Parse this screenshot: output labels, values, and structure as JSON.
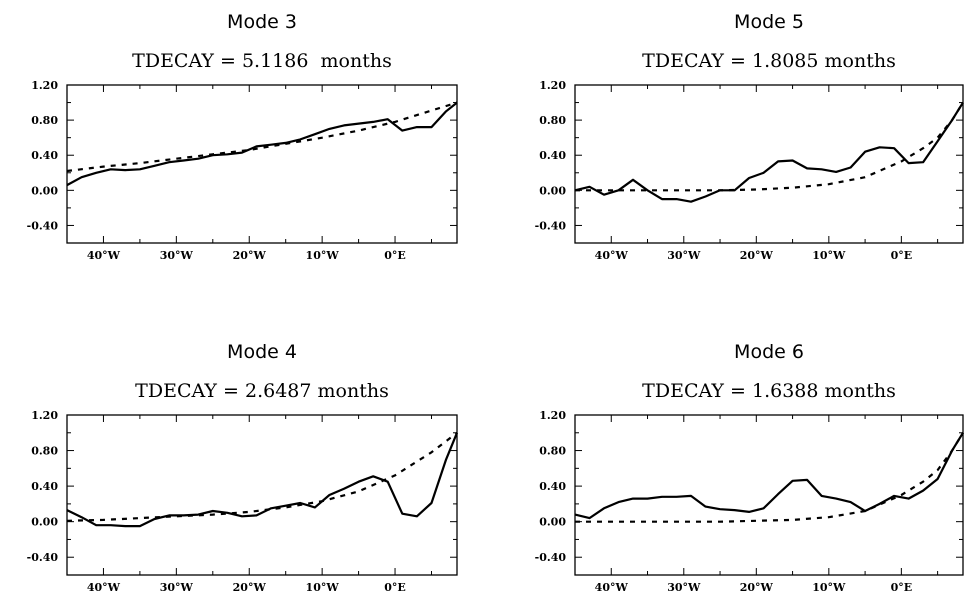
{
  "chart_data": [
    {
      "type": "line",
      "panel": "Mode 3",
      "title": "TDECAY = 5.1186  months",
      "xlim": [
        -45,
        8.5
      ],
      "ylim": [
        -0.6,
        1.2
      ],
      "yticks": [
        "1.20",
        "0.80",
        "0.40",
        "0.00",
        "-0.40"
      ],
      "xticks": [
        "40°W",
        "30°W",
        "20°W",
        "10°W",
        "0°E"
      ],
      "series": [
        {
          "style": "solid",
          "x": [
            -45,
            -43,
            -41,
            -39,
            -37,
            -35,
            -33,
            -31,
            -29,
            -27,
            -25,
            -23,
            -21,
            -19,
            -17,
            -15,
            -13,
            -11,
            -9,
            -7,
            -5,
            -3,
            -1,
            1,
            3,
            5,
            7,
            8.5
          ],
          "y": [
            0.06,
            0.15,
            0.2,
            0.24,
            0.23,
            0.24,
            0.28,
            0.32,
            0.34,
            0.36,
            0.4,
            0.41,
            0.43,
            0.5,
            0.52,
            0.54,
            0.58,
            0.64,
            0.7,
            0.74,
            0.76,
            0.78,
            0.81,
            0.68,
            0.72,
            0.72,
            0.9,
            1.0
          ]
        },
        {
          "style": "dashed",
          "x": [
            -45,
            -40,
            -35,
            -30,
            -25,
            -20,
            -15,
            -10,
            -5,
            0,
            5,
            8.5
          ],
          "y": [
            0.22,
            0.27,
            0.31,
            0.36,
            0.41,
            0.46,
            0.53,
            0.6,
            0.68,
            0.78,
            0.91,
            1.0
          ]
        }
      ]
    },
    {
      "type": "line",
      "panel": "Mode 5",
      "title": "TDECAY = 1.8085 months",
      "xlim": [
        -45,
        8.5
      ],
      "ylim": [
        -0.6,
        1.2
      ],
      "yticks": [
        "1.20",
        "0.80",
        "0.40",
        "0.00",
        "-0.40"
      ],
      "xticks": [
        "40°W",
        "30°W",
        "20°W",
        "10°W",
        "0°E"
      ],
      "series": [
        {
          "style": "solid",
          "x": [
            -45,
            -43,
            -41,
            -39,
            -37,
            -35,
            -33,
            -31,
            -29,
            -27,
            -25,
            -23,
            -21,
            -19,
            -17,
            -15,
            -13,
            -11,
            -9,
            -7,
            -5,
            -3,
            -1,
            1,
            3,
            5,
            7,
            8.5
          ],
          "y": [
            0.0,
            0.04,
            -0.05,
            0.0,
            0.12,
            0.0,
            -0.1,
            -0.1,
            -0.13,
            -0.07,
            0.0,
            0.0,
            0.14,
            0.2,
            0.33,
            0.34,
            0.25,
            0.24,
            0.21,
            0.26,
            0.44,
            0.49,
            0.48,
            0.31,
            0.32,
            0.56,
            0.8,
            1.0
          ]
        },
        {
          "style": "dashed",
          "x": [
            -45,
            -40,
            -35,
            -30,
            -25,
            -20,
            -15,
            -10,
            -5,
            0,
            3,
            5,
            7,
            8.5
          ],
          "y": [
            0.0,
            0.0,
            0.0,
            0.0,
            0.0,
            0.01,
            0.03,
            0.07,
            0.15,
            0.33,
            0.48,
            0.6,
            0.8,
            1.0
          ]
        }
      ]
    },
    {
      "type": "line",
      "panel": "Mode 4",
      "title": "TDECAY = 2.6487 months",
      "xlim": [
        -45,
        8.5
      ],
      "ylim": [
        -0.6,
        1.2
      ],
      "yticks": [
        "1.20",
        "0.80",
        "0.40",
        "0.00",
        "-0.40"
      ],
      "xticks": [
        "40°W",
        "30°W",
        "20°W",
        "10°W",
        "0°E"
      ],
      "series": [
        {
          "style": "solid",
          "x": [
            -45,
            -43,
            -41,
            -39,
            -37,
            -35,
            -33,
            -31,
            -29,
            -27,
            -25,
            -23,
            -21,
            -19,
            -17,
            -15,
            -13,
            -11,
            -9,
            -7,
            -5,
            -3,
            -1,
            1,
            3,
            5,
            7,
            8.5
          ],
          "y": [
            0.13,
            0.05,
            -0.04,
            -0.04,
            -0.05,
            -0.05,
            0.03,
            0.07,
            0.07,
            0.08,
            0.12,
            0.1,
            0.06,
            0.07,
            0.15,
            0.18,
            0.21,
            0.16,
            0.3,
            0.37,
            0.45,
            0.51,
            0.45,
            0.09,
            0.06,
            0.21,
            0.7,
            1.0
          ]
        },
        {
          "style": "dashed",
          "x": [
            -45,
            -40,
            -35,
            -30,
            -25,
            -20,
            -15,
            -10,
            -5,
            0,
            5,
            8.5
          ],
          "y": [
            0.01,
            0.02,
            0.04,
            0.06,
            0.08,
            0.11,
            0.16,
            0.23,
            0.34,
            0.52,
            0.78,
            1.0
          ]
        }
      ]
    },
    {
      "type": "line",
      "panel": "Mode 6",
      "title": "TDECAY = 1.6388 months",
      "xlim": [
        -45,
        8.5
      ],
      "ylim": [
        -0.6,
        1.2
      ],
      "yticks": [
        "1.20",
        "0.80",
        "0.40",
        "0.00",
        "-0.40"
      ],
      "xticks": [
        "40°W",
        "30°W",
        "20°W",
        "10°W",
        "0°E"
      ],
      "series": [
        {
          "style": "solid",
          "x": [
            -45,
            -43,
            -41,
            -39,
            -37,
            -35,
            -33,
            -31,
            -29,
            -27,
            -25,
            -23,
            -21,
            -19,
            -17,
            -15,
            -13,
            -11,
            -9,
            -7,
            -5,
            -3,
            -1,
            1,
            3,
            5,
            7,
            8.5
          ],
          "y": [
            0.08,
            0.04,
            0.15,
            0.22,
            0.26,
            0.26,
            0.28,
            0.28,
            0.29,
            0.17,
            0.14,
            0.13,
            0.11,
            0.15,
            0.31,
            0.46,
            0.47,
            0.29,
            0.26,
            0.22,
            0.12,
            0.2,
            0.29,
            0.26,
            0.35,
            0.48,
            0.8,
            1.0
          ]
        },
        {
          "style": "dashed",
          "x": [
            -45,
            -40,
            -35,
            -30,
            -25,
            -20,
            -15,
            -10,
            -5,
            0,
            3,
            5,
            7,
            8.5
          ],
          "y": [
            0.0,
            0.0,
            0.0,
            0.0,
            0.0,
            0.01,
            0.02,
            0.05,
            0.12,
            0.3,
            0.45,
            0.58,
            0.8,
            1.0
          ]
        }
      ]
    }
  ]
}
